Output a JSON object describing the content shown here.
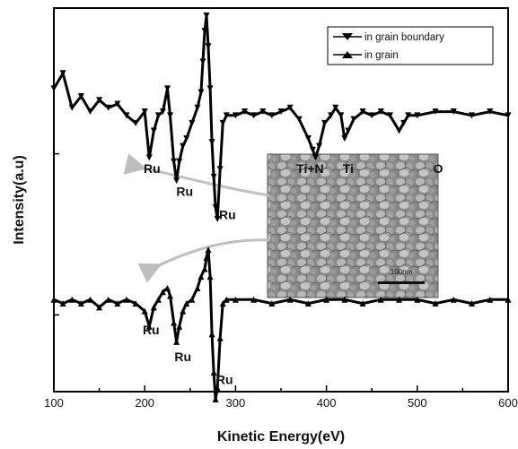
{
  "chart_data": {
    "type": "line",
    "title": "",
    "xlabel": "Kinetic Energy(eV)",
    "ylabel": "Intensity(a.u)",
    "xlim": [
      100,
      600
    ],
    "x_ticks": [
      "100",
      "200",
      "300",
      "400",
      "500",
      "600"
    ],
    "y_ticks_labeled": false,
    "grid": false,
    "legend_position": "top-right",
    "series": [
      {
        "name": "in grain boundary",
        "marker": "triangle-down",
        "color": "#000000",
        "points": [
          [
            100,
            0.79
          ],
          [
            110,
            0.83
          ],
          [
            120,
            0.74
          ],
          [
            130,
            0.77
          ],
          [
            140,
            0.73
          ],
          [
            150,
            0.76
          ],
          [
            160,
            0.74
          ],
          [
            170,
            0.75
          ],
          [
            180,
            0.72
          ],
          [
            190,
            0.7
          ],
          [
            200,
            0.73
          ],
          [
            205,
            0.61
          ],
          [
            210,
            0.68
          ],
          [
            215,
            0.72
          ],
          [
            220,
            0.73
          ],
          [
            225,
            0.79
          ],
          [
            228,
            0.72
          ],
          [
            232,
            0.6
          ],
          [
            235,
            0.55
          ],
          [
            238,
            0.6
          ],
          [
            242,
            0.64
          ],
          [
            246,
            0.66
          ],
          [
            252,
            0.7
          ],
          [
            258,
            0.74
          ],
          [
            262,
            0.78
          ],
          [
            264,
            0.86
          ],
          [
            266,
            0.94
          ],
          [
            268,
            0.98
          ],
          [
            270,
            0.9
          ],
          [
            272,
            0.79
          ],
          [
            274,
            0.65
          ],
          [
            276,
            0.56
          ],
          [
            278,
            0.48
          ],
          [
            280,
            0.45
          ],
          [
            283,
            0.58
          ],
          [
            286,
            0.7
          ],
          [
            290,
            0.72
          ],
          [
            300,
            0.72
          ],
          [
            310,
            0.73
          ],
          [
            320,
            0.72
          ],
          [
            330,
            0.73
          ],
          [
            340,
            0.72
          ],
          [
            350,
            0.73
          ],
          [
            360,
            0.74
          ],
          [
            370,
            0.71
          ],
          [
            380,
            0.66
          ],
          [
            385,
            0.63
          ],
          [
            388,
            0.61
          ],
          [
            392,
            0.64
          ],
          [
            398,
            0.7
          ],
          [
            405,
            0.72
          ],
          [
            410,
            0.74
          ],
          [
            416,
            0.72
          ],
          [
            420,
            0.66
          ],
          [
            424,
            0.68
          ],
          [
            430,
            0.71
          ],
          [
            440,
            0.73
          ],
          [
            450,
            0.72
          ],
          [
            460,
            0.73
          ],
          [
            470,
            0.72
          ],
          [
            480,
            0.68
          ],
          [
            485,
            0.7
          ],
          [
            490,
            0.72
          ],
          [
            500,
            0.72
          ],
          [
            520,
            0.73
          ],
          [
            540,
            0.73
          ],
          [
            560,
            0.72
          ],
          [
            580,
            0.73
          ],
          [
            600,
            0.72
          ]
        ]
      },
      {
        "name": "in grain",
        "marker": "triangle-up",
        "color": "#000000",
        "points": [
          [
            100,
            0.24
          ],
          [
            110,
            0.23
          ],
          [
            120,
            0.24
          ],
          [
            130,
            0.23
          ],
          [
            140,
            0.24
          ],
          [
            150,
            0.22
          ],
          [
            160,
            0.24
          ],
          [
            170,
            0.23
          ],
          [
            180,
            0.24
          ],
          [
            190,
            0.23
          ],
          [
            200,
            0.21
          ],
          [
            205,
            0.17
          ],
          [
            210,
            0.22
          ],
          [
            215,
            0.24
          ],
          [
            220,
            0.26
          ],
          [
            225,
            0.27
          ],
          [
            228,
            0.25
          ],
          [
            232,
            0.18
          ],
          [
            235,
            0.13
          ],
          [
            238,
            0.17
          ],
          [
            242,
            0.21
          ],
          [
            246,
            0.23
          ],
          [
            252,
            0.24
          ],
          [
            258,
            0.27
          ],
          [
            262,
            0.3
          ],
          [
            266,
            0.32
          ],
          [
            268,
            0.35
          ],
          [
            270,
            0.37
          ],
          [
            272,
            0.3
          ],
          [
            274,
            0.15
          ],
          [
            276,
            0.05
          ],
          [
            278,
            -0.02
          ],
          [
            280,
            0.01
          ],
          [
            283,
            0.14
          ],
          [
            286,
            0.23
          ],
          [
            290,
            0.24
          ],
          [
            300,
            0.24
          ],
          [
            320,
            0.24
          ],
          [
            340,
            0.23
          ],
          [
            360,
            0.24
          ],
          [
            380,
            0.23
          ],
          [
            400,
            0.24
          ],
          [
            420,
            0.24
          ],
          [
            440,
            0.23
          ],
          [
            460,
            0.24
          ],
          [
            480,
            0.24
          ],
          [
            500,
            0.24
          ],
          [
            520,
            0.23
          ],
          [
            540,
            0.24
          ],
          [
            560,
            0.23
          ],
          [
            580,
            0.24
          ],
          [
            600,
            0.24
          ]
        ]
      }
    ],
    "annotations": [
      {
        "text": "Ru",
        "x": 208,
        "y": 0.57
      },
      {
        "text": "Ru",
        "x": 244,
        "y": 0.51
      },
      {
        "text": "Ru",
        "x": 291,
        "y": 0.45
      },
      {
        "text": "Ti+N",
        "x": 382,
        "y": 0.57
      },
      {
        "text": "Ti",
        "x": 424,
        "y": 0.57
      },
      {
        "text": "O",
        "x": 523,
        "y": 0.57
      },
      {
        "text": "Ru",
        "x": 207,
        "y": 0.15
      },
      {
        "text": "Ru",
        "x": 242,
        "y": 0.08
      },
      {
        "text": "Ru",
        "x": 288,
        "y": 0.02
      }
    ],
    "inset": {
      "type": "micrograph-image",
      "scale_bar_label": "100nm"
    }
  }
}
